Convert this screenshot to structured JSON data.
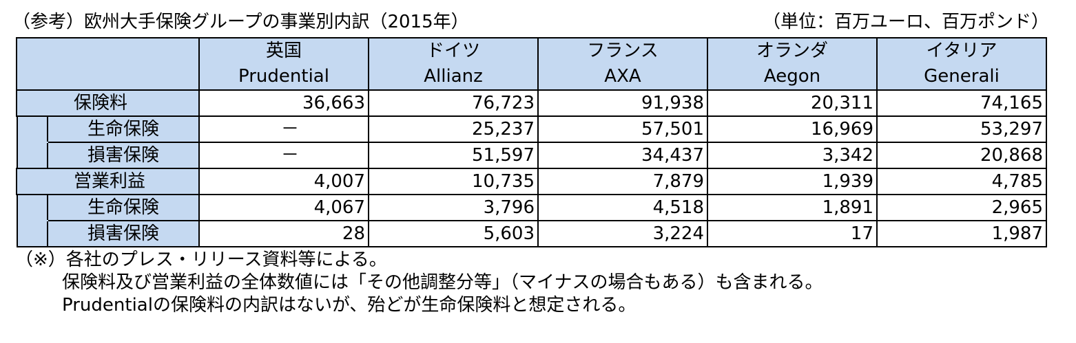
{
  "title": "（参考）欧州大手保険グループの事業別内訳（2015年）",
  "unit": "（単位：百万ユーロ、百万ポンド）",
  "companies": [
    {
      "country": "英国",
      "name": "Prudential"
    },
    {
      "country": "ドイツ",
      "name": "Allianz"
    },
    {
      "country": "フランス",
      "name": "AXA"
    },
    {
      "country": "オランダ",
      "name": "Aegon"
    },
    {
      "country": "イタリア",
      "name": "Generali"
    }
  ],
  "rows": [
    {
      "label": "保険料",
      "level": "parent",
      "values": [
        "36,663",
        "76,723",
        "91,938",
        "20,311",
        "74,165"
      ]
    },
    {
      "label": "生命保険",
      "level": "child",
      "values": [
        "－",
        "25,237",
        "57,501",
        "16,969",
        "53,297"
      ]
    },
    {
      "label": "損害保険",
      "level": "child",
      "values": [
        "－",
        "51,597",
        "34,437",
        "3,342",
        "20,868"
      ]
    },
    {
      "label": "営業利益",
      "level": "parent",
      "values": [
        "4,007",
        "10,735",
        "7,879",
        "1,939",
        "4,785"
      ]
    },
    {
      "label": "生命保険",
      "level": "child",
      "values": [
        "4,067",
        "3,796",
        "4,518",
        "1,891",
        "2,965"
      ]
    },
    {
      "label": "損害保険",
      "level": "child",
      "values": [
        "28",
        "5,603",
        "3,224",
        "17",
        "1,987"
      ]
    }
  ],
  "notes": [
    "（※）各社のプレス・リリース資料等による。",
    "保険料及び営業利益の全体数値には「その他調整分等」（マイナスの場合もある）も含まれる。",
    "Prudentialの保険料の内訳はないが、殆どが生命保険料と想定される。"
  ]
}
